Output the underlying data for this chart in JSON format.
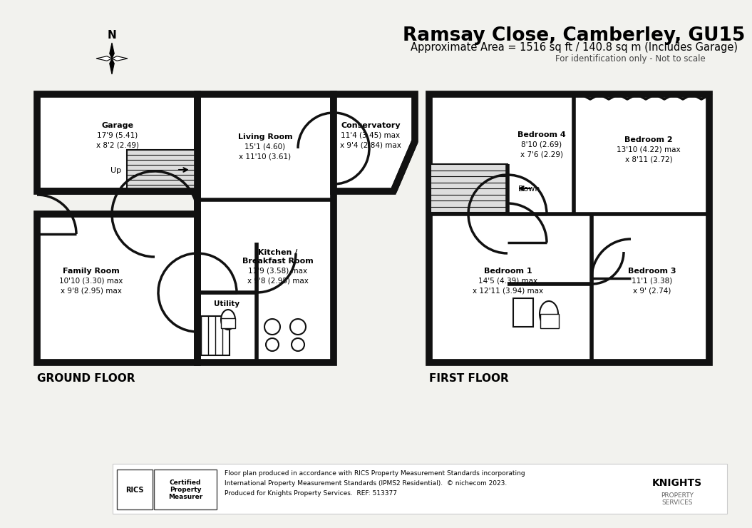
{
  "title": "Ramsay Close, Camberley, GU15",
  "subtitle": "Approximate Area = 1516 sq ft / 140.8 sq m (Includes Garage)",
  "subtitle2": "For identification only - Not to scale",
  "ground_floor_label": "GROUND FLOOR",
  "first_floor_label": "FIRST FLOOR",
  "bg_color": "#f2f2ee",
  "wall_color": "#111111",
  "footer_text": "Floor plan produced in accordance with RICS Property Measurement Standards incorporating\nInternational Property Measurement Standards (IPMS2 Residential).  © nichecom 2023.\nProduced for Knights Property Services.  REF: 513377"
}
